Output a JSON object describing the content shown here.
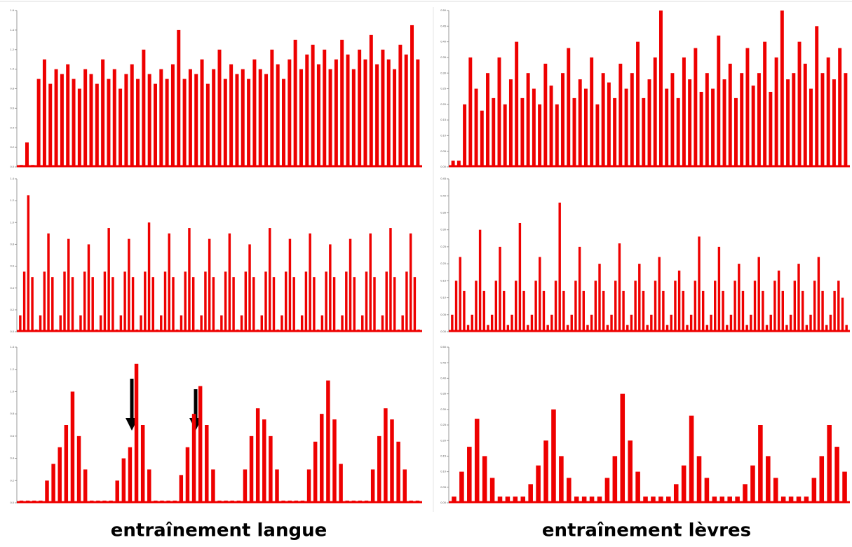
{
  "chart_data": [
    {
      "type": "bar",
      "color": "#ee0000",
      "ylim": [
        0,
        1.6
      ],
      "yticks": [
        {
          "value": 0,
          "label": "0.0"
        },
        {
          "value": 0.2,
          "label": "0.2"
        },
        {
          "value": 0.4,
          "label": "0.4"
        },
        {
          "value": 0.6,
          "label": "0.6"
        },
        {
          "value": 0.8,
          "label": "0.8"
        },
        {
          "value": 1,
          "label": "1.0"
        },
        {
          "value": 1.2,
          "label": "1.2"
        },
        {
          "value": 1.4,
          "label": "1.4"
        },
        {
          "value": 1.6,
          "label": "1.6"
        }
      ],
      "values": [
        0.02,
        0.25,
        0.02,
        0.9,
        1.1,
        0.85,
        1.0,
        0.95,
        1.05,
        0.9,
        0.8,
        1.0,
        0.95,
        0.85,
        1.1,
        0.9,
        1.0,
        0.8,
        0.95,
        1.05,
        0.9,
        1.2,
        0.95,
        0.85,
        1.0,
        0.9,
        1.05,
        1.4,
        0.9,
        1.0,
        0.95,
        1.1,
        0.85,
        1.0,
        1.2,
        0.9,
        1.05,
        0.95,
        1.0,
        0.9,
        1.1,
        1.0,
        0.95,
        1.2,
        1.05,
        0.9,
        1.1,
        1.3,
        1.0,
        1.15,
        1.25,
        1.05,
        1.2,
        1.0,
        1.1,
        1.3,
        1.15,
        1.0,
        1.2,
        1.1,
        1.35,
        1.05,
        1.2,
        1.1,
        1.0,
        1.25,
        1.15,
        1.45,
        1.1
      ]
    },
    {
      "type": "bar",
      "color": "#ee0000",
      "ylim": [
        0,
        1.4
      ],
      "yticks": [
        {
          "value": 0,
          "label": "0.0"
        },
        {
          "value": 0.2,
          "label": "0.2"
        },
        {
          "value": 0.4,
          "label": "0.4"
        },
        {
          "value": 0.6,
          "label": "0.6"
        },
        {
          "value": 0.8,
          "label": "0.8"
        },
        {
          "value": 1,
          "label": "1.0"
        },
        {
          "value": 1.2,
          "label": "1.2"
        },
        {
          "value": 1.4,
          "label": "1.4"
        }
      ],
      "values": [
        0.15,
        0.55,
        1.25,
        0.5,
        0.02,
        0.15,
        0.55,
        0.9,
        0.5,
        0.02,
        0.15,
        0.55,
        0.85,
        0.5,
        0.02,
        0.15,
        0.55,
        0.8,
        0.5,
        0.02,
        0.15,
        0.55,
        0.95,
        0.5,
        0.02,
        0.15,
        0.55,
        0.85,
        0.5,
        0.02,
        0.15,
        0.55,
        1.0,
        0.5,
        0.02,
        0.15,
        0.55,
        0.9,
        0.5,
        0.02,
        0.15,
        0.55,
        0.95,
        0.5,
        0.02,
        0.15,
        0.55,
        0.85,
        0.5,
        0.02,
        0.15,
        0.55,
        0.9,
        0.5,
        0.02,
        0.15,
        0.55,
        0.8,
        0.5,
        0.02,
        0.15,
        0.55,
        0.95,
        0.5,
        0.02,
        0.15,
        0.55,
        0.85,
        0.5,
        0.02,
        0.15,
        0.55,
        0.9,
        0.5,
        0.02,
        0.15,
        0.55,
        0.8,
        0.5,
        0.02,
        0.15,
        0.55,
        0.85,
        0.5,
        0.02,
        0.15,
        0.55,
        0.9,
        0.5,
        0.02,
        0.15,
        0.55,
        0.95,
        0.5,
        0.02,
        0.15,
        0.55,
        0.9,
        0.5,
        0.02
      ]
    },
    {
      "type": "bar",
      "color": "#ee0000",
      "ylim": [
        0,
        1.4
      ],
      "yticks": [
        {
          "value": 0,
          "label": "0.0"
        },
        {
          "value": 0.2,
          "label": "0.2"
        },
        {
          "value": 0.4,
          "label": "0.4"
        },
        {
          "value": 0.6,
          "label": "0.6"
        },
        {
          "value": 0.8,
          "label": "0.8"
        },
        {
          "value": 1,
          "label": "1.0"
        },
        {
          "value": 1.2,
          "label": "1.2"
        },
        {
          "value": 1.4,
          "label": "1.4"
        }
      ],
      "values": [
        0.02,
        0.02,
        0.02,
        0.02,
        0.2,
        0.35,
        0.5,
        0.7,
        1.0,
        0.6,
        0.3,
        0.02,
        0.02,
        0.02,
        0.02,
        0.2,
        0.4,
        0.5,
        1.25,
        0.7,
        0.3,
        0.02,
        0.02,
        0.02,
        0.02,
        0.25,
        0.5,
        0.8,
        1.05,
        0.7,
        0.3,
        0.02,
        0.02,
        0.02,
        0.02,
        0.3,
        0.6,
        0.85,
        0.75,
        0.6,
        0.3,
        0.02,
        0.02,
        0.02,
        0.02,
        0.3,
        0.55,
        0.8,
        1.1,
        0.75,
        0.35,
        0.02,
        0.02,
        0.02,
        0.02,
        0.3,
        0.6,
        0.85,
        0.75,
        0.55,
        0.3,
        0.02,
        0.02
      ]
    },
    {
      "type": "bar",
      "color": "#ee0000",
      "ylim": [
        0,
        0.5
      ],
      "yticks": [
        {
          "value": 0,
          "label": "0.00"
        },
        {
          "value": 0.05,
          "label": "0.05"
        },
        {
          "value": 0.1,
          "label": "0.10"
        },
        {
          "value": 0.15,
          "label": "0.15"
        },
        {
          "value": 0.2,
          "label": "0.20"
        },
        {
          "value": 0.25,
          "label": "0.25"
        },
        {
          "value": 0.3,
          "label": "0.30"
        },
        {
          "value": 0.35,
          "label": "0.35"
        },
        {
          "value": 0.4,
          "label": "0.40"
        },
        {
          "value": 0.45,
          "label": "0.45"
        },
        {
          "value": 0.5,
          "label": "0.50"
        }
      ],
      "values": [
        0.02,
        0.02,
        0.2,
        0.35,
        0.25,
        0.18,
        0.3,
        0.22,
        0.35,
        0.2,
        0.28,
        0.4,
        0.22,
        0.3,
        0.25,
        0.2,
        0.33,
        0.26,
        0.2,
        0.3,
        0.38,
        0.22,
        0.28,
        0.25,
        0.35,
        0.2,
        0.3,
        0.27,
        0.22,
        0.33,
        0.25,
        0.3,
        0.4,
        0.22,
        0.28,
        0.35,
        0.5,
        0.25,
        0.3,
        0.22,
        0.35,
        0.28,
        0.38,
        0.24,
        0.3,
        0.25,
        0.42,
        0.28,
        0.33,
        0.22,
        0.3,
        0.38,
        0.26,
        0.3,
        0.4,
        0.24,
        0.35,
        0.5,
        0.28,
        0.3,
        0.4,
        0.33,
        0.25,
        0.45,
        0.3,
        0.35,
        0.28,
        0.38,
        0.3
      ]
    },
    {
      "type": "bar",
      "color": "#ee0000",
      "ylim": [
        0,
        0.45
      ],
      "yticks": [
        {
          "value": 0,
          "label": "0.00"
        },
        {
          "value": 0.05,
          "label": "0.05"
        },
        {
          "value": 0.1,
          "label": "0.10"
        },
        {
          "value": 0.15,
          "label": "0.15"
        },
        {
          "value": 0.2,
          "label": "0.20"
        },
        {
          "value": 0.25,
          "label": "0.25"
        },
        {
          "value": 0.3,
          "label": "0.30"
        },
        {
          "value": 0.35,
          "label": "0.35"
        },
        {
          "value": 0.4,
          "label": "0.40"
        },
        {
          "value": 0.45,
          "label": "0.45"
        }
      ],
      "values": [
        0.05,
        0.15,
        0.22,
        0.12,
        0.02,
        0.05,
        0.15,
        0.3,
        0.12,
        0.02,
        0.05,
        0.15,
        0.25,
        0.12,
        0.02,
        0.05,
        0.15,
        0.32,
        0.12,
        0.02,
        0.05,
        0.15,
        0.22,
        0.12,
        0.02,
        0.05,
        0.15,
        0.38,
        0.12,
        0.02,
        0.05,
        0.15,
        0.25,
        0.12,
        0.02,
        0.05,
        0.15,
        0.2,
        0.12,
        0.02,
        0.05,
        0.15,
        0.26,
        0.12,
        0.02,
        0.05,
        0.15,
        0.2,
        0.12,
        0.02,
        0.05,
        0.15,
        0.22,
        0.12,
        0.02,
        0.05,
        0.15,
        0.18,
        0.12,
        0.02,
        0.05,
        0.15,
        0.28,
        0.12,
        0.02,
        0.05,
        0.15,
        0.25,
        0.12,
        0.02,
        0.05,
        0.15,
        0.2,
        0.12,
        0.02,
        0.05,
        0.15,
        0.22,
        0.12,
        0.02,
        0.05,
        0.15,
        0.18,
        0.12,
        0.02,
        0.05,
        0.15,
        0.2,
        0.12,
        0.02,
        0.05,
        0.15,
        0.22,
        0.12,
        0.02,
        0.05,
        0.12,
        0.15,
        0.1,
        0.02
      ]
    },
    {
      "type": "bar",
      "color": "#ee0000",
      "ylim": [
        0,
        0.5
      ],
      "yticks": [
        {
          "value": 0,
          "label": "0.00"
        },
        {
          "value": 0.05,
          "label": "0.05"
        },
        {
          "value": 0.1,
          "label": "0.10"
        },
        {
          "value": 0.15,
          "label": "0.15"
        },
        {
          "value": 0.2,
          "label": "0.20"
        },
        {
          "value": 0.25,
          "label": "0.25"
        },
        {
          "value": 0.3,
          "label": "0.30"
        },
        {
          "value": 0.35,
          "label": "0.35"
        },
        {
          "value": 0.4,
          "label": "0.40"
        },
        {
          "value": 0.45,
          "label": "0.45"
        },
        {
          "value": 0.5,
          "label": "0.50"
        }
      ],
      "values": [
        0.02,
        0.1,
        0.18,
        0.27,
        0.15,
        0.08,
        0.02,
        0.02,
        0.02,
        0.02,
        0.06,
        0.12,
        0.2,
        0.3,
        0.15,
        0.08,
        0.02,
        0.02,
        0.02,
        0.02,
        0.08,
        0.15,
        0.35,
        0.2,
        0.1,
        0.02,
        0.02,
        0.02,
        0.02,
        0.06,
        0.12,
        0.28,
        0.15,
        0.08,
        0.02,
        0.02,
        0.02,
        0.02,
        0.06,
        0.12,
        0.25,
        0.15,
        0.08,
        0.02,
        0.02,
        0.02,
        0.02,
        0.08,
        0.15,
        0.25,
        0.18,
        0.1
      ]
    }
  ],
  "captions": [
    "entraînement langue",
    "entraînement lèvres"
  ]
}
